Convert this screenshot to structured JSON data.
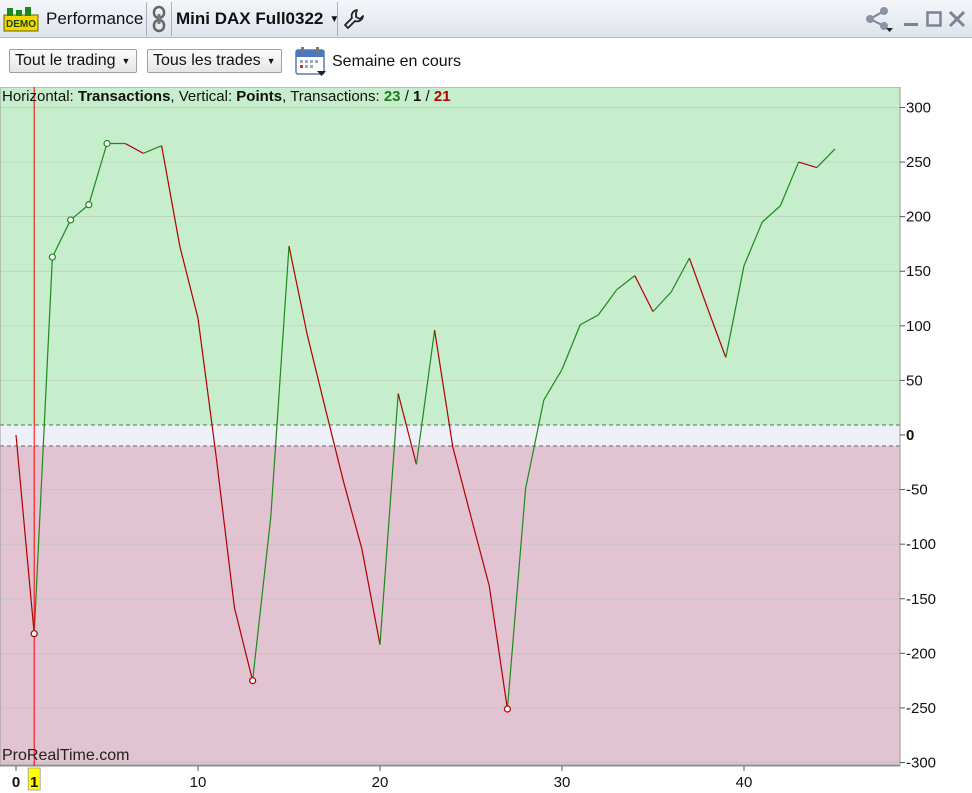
{
  "titlebar": {
    "demo_badge": "DEMO",
    "module_label": "Performance",
    "instrument": "Mini DAX Full0322"
  },
  "toolbar": {
    "filter_trading": "Tout le trading",
    "filter_trades": "Tous les trades",
    "period_label": "Semaine en cours"
  },
  "legend": {
    "horizontal_prefix": "Horizontal: ",
    "horizontal_value": "Transactions",
    "vertical_prefix": ", Vertical: ",
    "vertical_value": "Points",
    "transactions_prefix": ", Transactions: ",
    "wins": "23",
    "sep1": " / ",
    "neutral": "1",
    "sep2": " / ",
    "losses": "21"
  },
  "watermark": "ProRealTime.com",
  "colors": {
    "gain_zone": "#c6edcc",
    "loss_zone": "#e2c3d1",
    "up_line": "#1c8a1c",
    "down_line": "#b00000",
    "cursor_line": "#ff0000",
    "cursor_badge": "#ffff00"
  },
  "chart_data": {
    "type": "line",
    "xlabel": "",
    "ylabel": "",
    "xlim": [
      -1,
      48
    ],
    "ylim": [
      -300,
      300
    ],
    "y_ticks": [
      300,
      250,
      200,
      150,
      100,
      50,
      0,
      -50,
      -100,
      -150,
      -200,
      -250,
      -300
    ],
    "x_ticks": [
      0,
      10,
      20,
      30,
      40
    ],
    "cursor_x": 1,
    "zero_band": [
      -10,
      10
    ],
    "series": [
      {
        "x": [
          0,
          1,
          2,
          3,
          4,
          5,
          6,
          7,
          8,
          9,
          10,
          11,
          12,
          13,
          14,
          15,
          16,
          17,
          18,
          19,
          20,
          21,
          22,
          23,
          24,
          25,
          26,
          27,
          28,
          29,
          30,
          31,
          32,
          33,
          34,
          35,
          36,
          37,
          38,
          39,
          40,
          41,
          42,
          43,
          44,
          45
        ],
        "y": [
          0,
          -182,
          163,
          197,
          211,
          267,
          267,
          258,
          265,
          173,
          107,
          -20,
          -158,
          -225,
          -75,
          173,
          92,
          24,
          -43,
          -104,
          -192,
          38,
          -27,
          96,
          -11,
          -75,
          -138,
          -251,
          -49,
          32,
          60,
          101,
          110,
          133,
          146,
          113,
          131,
          162,
          116,
          71,
          155,
          195,
          210,
          250,
          245,
          262
        ]
      }
    ],
    "markers": [
      {
        "x": 1,
        "y": -182,
        "kind": "loss"
      },
      {
        "x": 2,
        "y": 163,
        "kind": "gain"
      },
      {
        "x": 3,
        "y": 197,
        "kind": "gain"
      },
      {
        "x": 4,
        "y": 211,
        "kind": "gain"
      },
      {
        "x": 5,
        "y": 267,
        "kind": "gain"
      },
      {
        "x": 13,
        "y": -225,
        "kind": "loss"
      },
      {
        "x": 27,
        "y": -251,
        "kind": "loss"
      }
    ]
  }
}
